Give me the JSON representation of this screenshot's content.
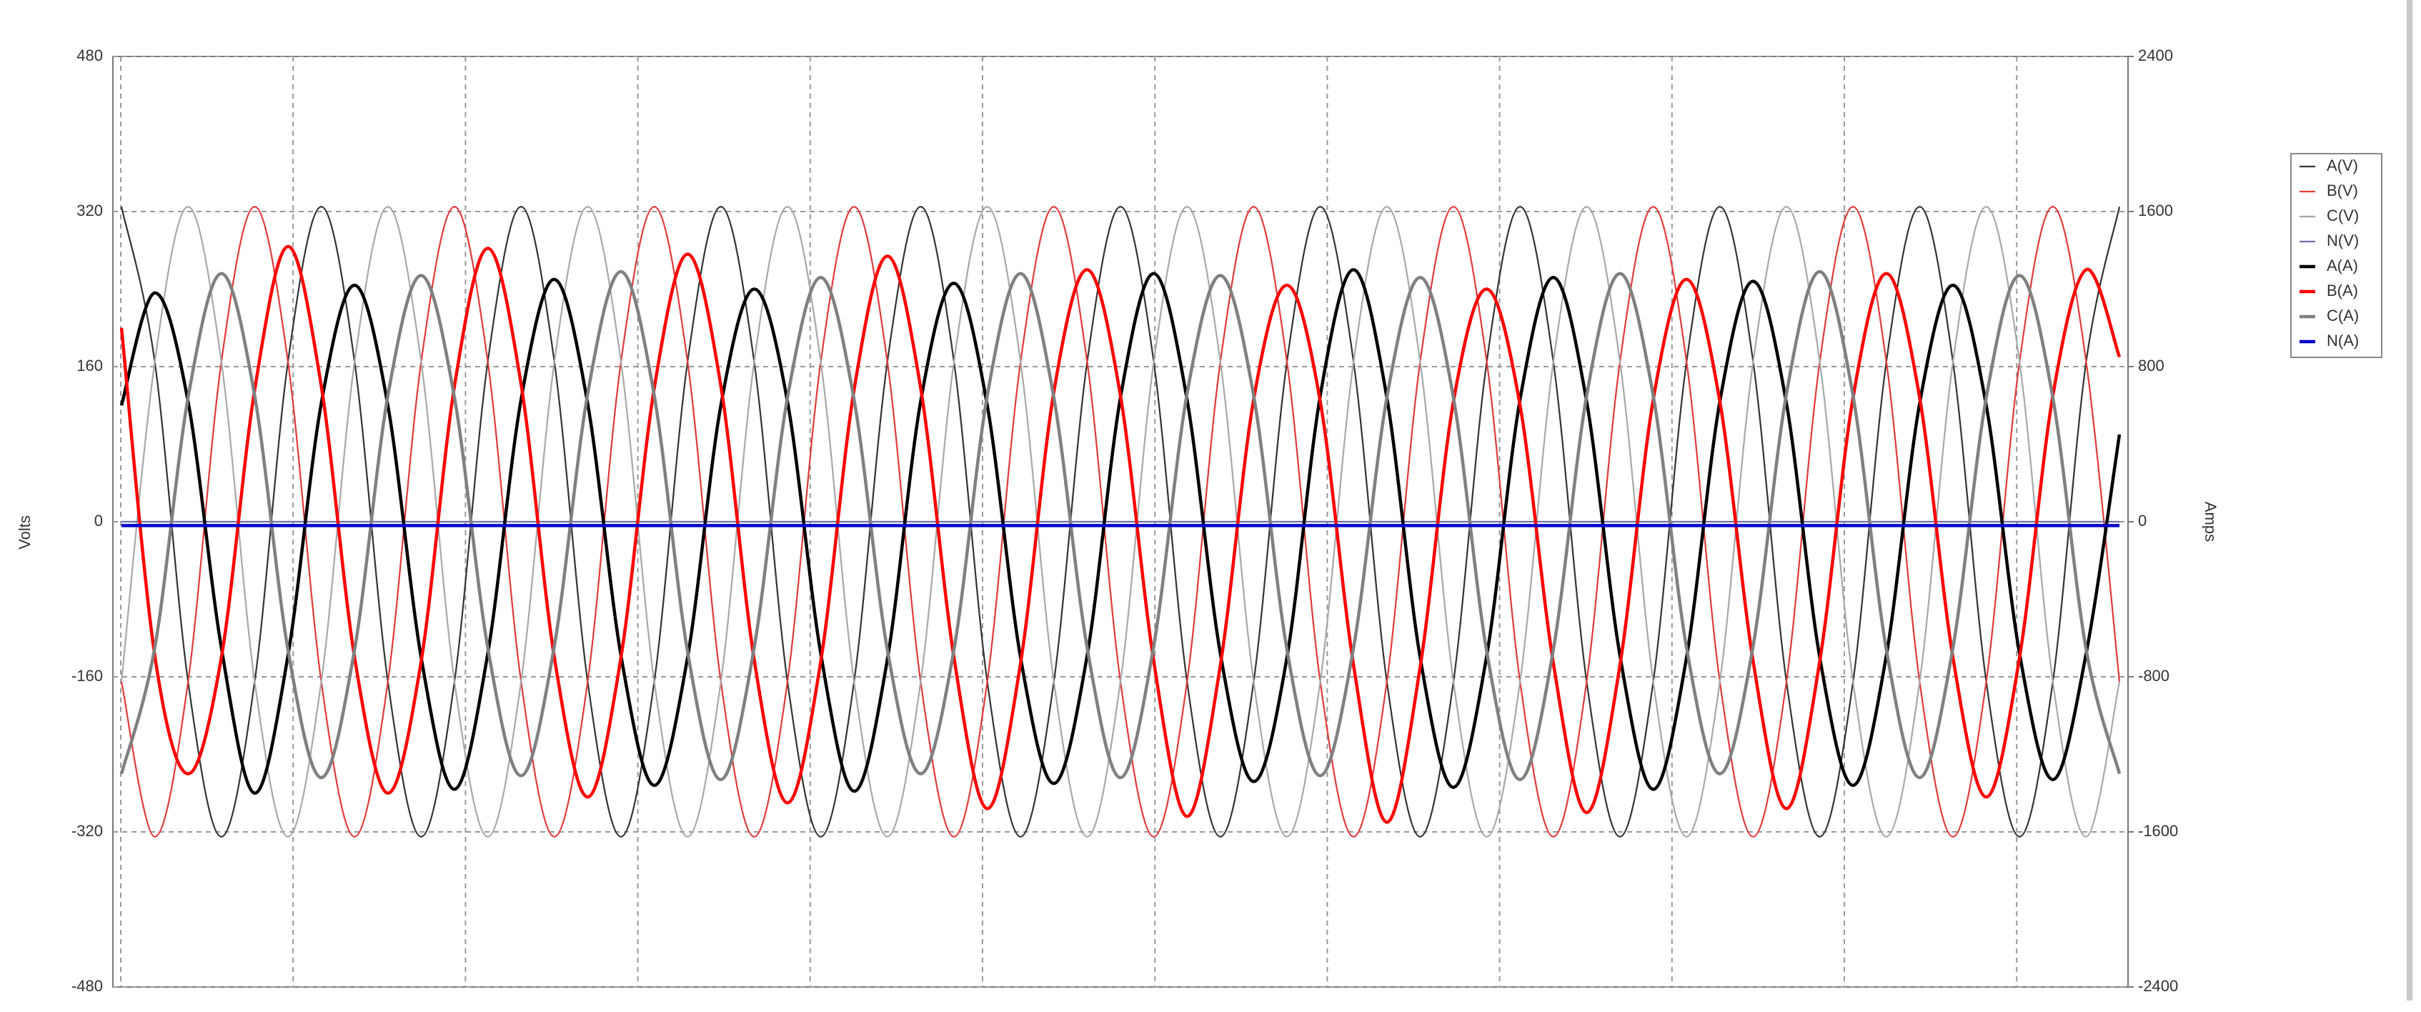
{
  "chart_data": {
    "type": "line",
    "y_label": "Volts",
    "y2_label": "Amps",
    "ylim": [
      -480,
      480
    ],
    "yticks": [
      -480,
      -320,
      -160,
      0,
      160,
      320,
      480
    ],
    "y2lim": [
      -2400,
      2400
    ],
    "y2ticks": [
      -2400,
      -1600,
      -800,
      0,
      800,
      1600,
      2400
    ],
    "grid": true,
    "legend": "right",
    "series": [
      {
        "name": "A(V)",
        "color": "#333333",
        "width": "thin",
        "values": [
          325,
          165,
          -165,
          -325,
          -165,
          165,
          325,
          165,
          -165,
          -325,
          -165,
          165,
          325,
          165,
          -165,
          -325,
          -165,
          165,
          325,
          165,
          -165,
          -325,
          -165,
          165,
          325,
          165,
          -165,
          -325,
          -165,
          165,
          325,
          165,
          -165,
          -325,
          -165,
          165,
          325,
          165,
          -165,
          -325,
          -165,
          165,
          325,
          165,
          -165,
          -325,
          -165,
          165,
          325,
          165,
          -165,
          -325,
          -165,
          165,
          325,
          165,
          -165,
          -325,
          -165,
          165,
          325
        ]
      },
      {
        "name": "B(V)",
        "color": "#e23a3a",
        "width": "thin",
        "values": [
          -165,
          -325,
          -165,
          165,
          325,
          165,
          -165,
          -325,
          -165,
          165,
          325,
          165,
          -165,
          -325,
          -165,
          165,
          325,
          165,
          -165,
          -325,
          -165,
          165,
          325,
          165,
          -165,
          -325,
          -165,
          165,
          325,
          165,
          -165,
          -325,
          -165,
          165,
          325,
          165,
          -165,
          -325,
          -165,
          165,
          325,
          165,
          -165,
          -325,
          -165,
          165,
          325,
          165,
          -165,
          -325,
          -165,
          165,
          325,
          165,
          -165,
          -325,
          -165,
          165,
          325,
          165,
          -165
        ]
      },
      {
        "name": "C(V)",
        "color": "#a8a8a8",
        "width": "thin",
        "values": [
          -165,
          165,
          325,
          165,
          -165,
          -325,
          -165,
          165,
          325,
          165,
          -165,
          -325,
          -165,
          165,
          325,
          165,
          -165,
          -325,
          -165,
          165,
          325,
          165,
          -165,
          -325,
          -165,
          165,
          325,
          165,
          -165,
          -325,
          -165,
          165,
          325,
          165,
          -165,
          -325,
          -165,
          165,
          325,
          165,
          -165,
          -325,
          -165,
          165,
          325,
          165,
          -165,
          -325,
          -165,
          165,
          325,
          165,
          -165,
          -325,
          -165,
          165,
          325,
          165,
          -165,
          -325,
          -165
        ]
      },
      {
        "name": "N(V)",
        "color": "#7070b0",
        "width": "thin",
        "values": [
          0,
          0,
          0,
          0,
          0,
          0,
          0,
          0,
          0,
          0,
          0,
          0,
          0,
          0,
          0,
          0,
          0,
          0,
          0,
          0,
          0,
          0,
          0,
          0,
          0,
          0,
          0,
          0,
          0,
          0,
          0,
          0,
          0,
          0,
          0,
          0,
          0,
          0,
          0,
          0,
          0,
          0,
          0,
          0,
          0,
          0,
          0,
          0,
          0,
          0,
          0,
          0,
          0,
          0,
          0,
          0,
          0,
          0,
          0,
          0,
          0
        ]
      },
      {
        "name": "A(A)",
        "color": "#000000",
        "width": "thick",
        "axis": "y2",
        "values": [
          600,
          1180,
          620,
          -650,
          -1400,
          -690,
          610,
          1220,
          600,
          -700,
          -1380,
          -680,
          630,
          1250,
          610,
          -690,
          -1360,
          -700,
          600,
          1200,
          620,
          -680,
          -1390,
          -710,
          620,
          1230,
          600,
          -700,
          -1350,
          -690,
          640,
          1280,
          630,
          -680,
          -1340,
          -700,
          650,
          1300,
          640,
          -700,
          -1370,
          -690,
          630,
          1260,
          620,
          -690,
          -1380,
          -700,
          620,
          1240,
          610,
          -700,
          -1360,
          -690,
          610,
          1220,
          600,
          -680,
          -1330,
          -680,
          450
        ]
      },
      {
        "name": "B(A)",
        "color": "#ff0000",
        "width": "thick",
        "axis": "y2",
        "values": [
          1000,
          -690,
          -1300,
          -700,
          680,
          1420,
          700,
          -700,
          -1400,
          -720,
          700,
          1410,
          710,
          -700,
          -1420,
          -700,
          690,
          1380,
          700,
          -710,
          -1450,
          -720,
          680,
          1370,
          690,
          -700,
          -1480,
          -730,
          670,
          1300,
          650,
          -720,
          -1520,
          -740,
          630,
          1220,
          620,
          -740,
          -1550,
          -750,
          620,
          1200,
          600,
          -730,
          -1500,
          -740,
          630,
          1250,
          620,
          -720,
          -1480,
          -720,
          640,
          1280,
          640,
          -700,
          -1420,
          -700,
          650,
          1300,
          850
        ]
      },
      {
        "name": "C(A)",
        "color": "#808080",
        "width": "thick",
        "axis": "y2",
        "values": [
          -1300,
          -650,
          640,
          1280,
          650,
          -660,
          -1320,
          -660,
          650,
          1270,
          640,
          -650,
          -1310,
          -640,
          660,
          1290,
          650,
          -670,
          -1330,
          -650,
          640,
          1260,
          630,
          -660,
          -1300,
          -660,
          650,
          1280,
          640,
          -650,
          -1320,
          -640,
          660,
          1270,
          650,
          -660,
          -1310,
          -650,
          640,
          1260,
          640,
          -670,
          -1330,
          -660,
          650,
          1280,
          650,
          -650,
          -1300,
          -640,
          660,
          1290,
          650,
          -660,
          -1320,
          -650,
          640,
          1270,
          640,
          -660,
          -1300
        ]
      },
      {
        "name": "N(A)",
        "color": "#0000cc",
        "width": "thick",
        "axis": "y2",
        "values": [
          -20,
          -20,
          -20,
          -20,
          -20,
          -20,
          -20,
          -20,
          -20,
          -20,
          -20,
          -20,
          -20,
          -20,
          -20,
          -20,
          -20,
          -20,
          -20,
          -20,
          -20,
          -20,
          -20,
          -20,
          -20,
          -20,
          -20,
          -20,
          -20,
          -20,
          -20,
          -20,
          -20,
          -20,
          -20,
          -20,
          -20,
          -20,
          -20,
          -20,
          -20,
          -20,
          -20,
          -20,
          -20,
          -20,
          -20,
          -20,
          -20,
          -20,
          -20,
          -20,
          -20,
          -20,
          -20,
          -20,
          -20,
          -20,
          -20,
          -20,
          -20
        ]
      }
    ]
  }
}
